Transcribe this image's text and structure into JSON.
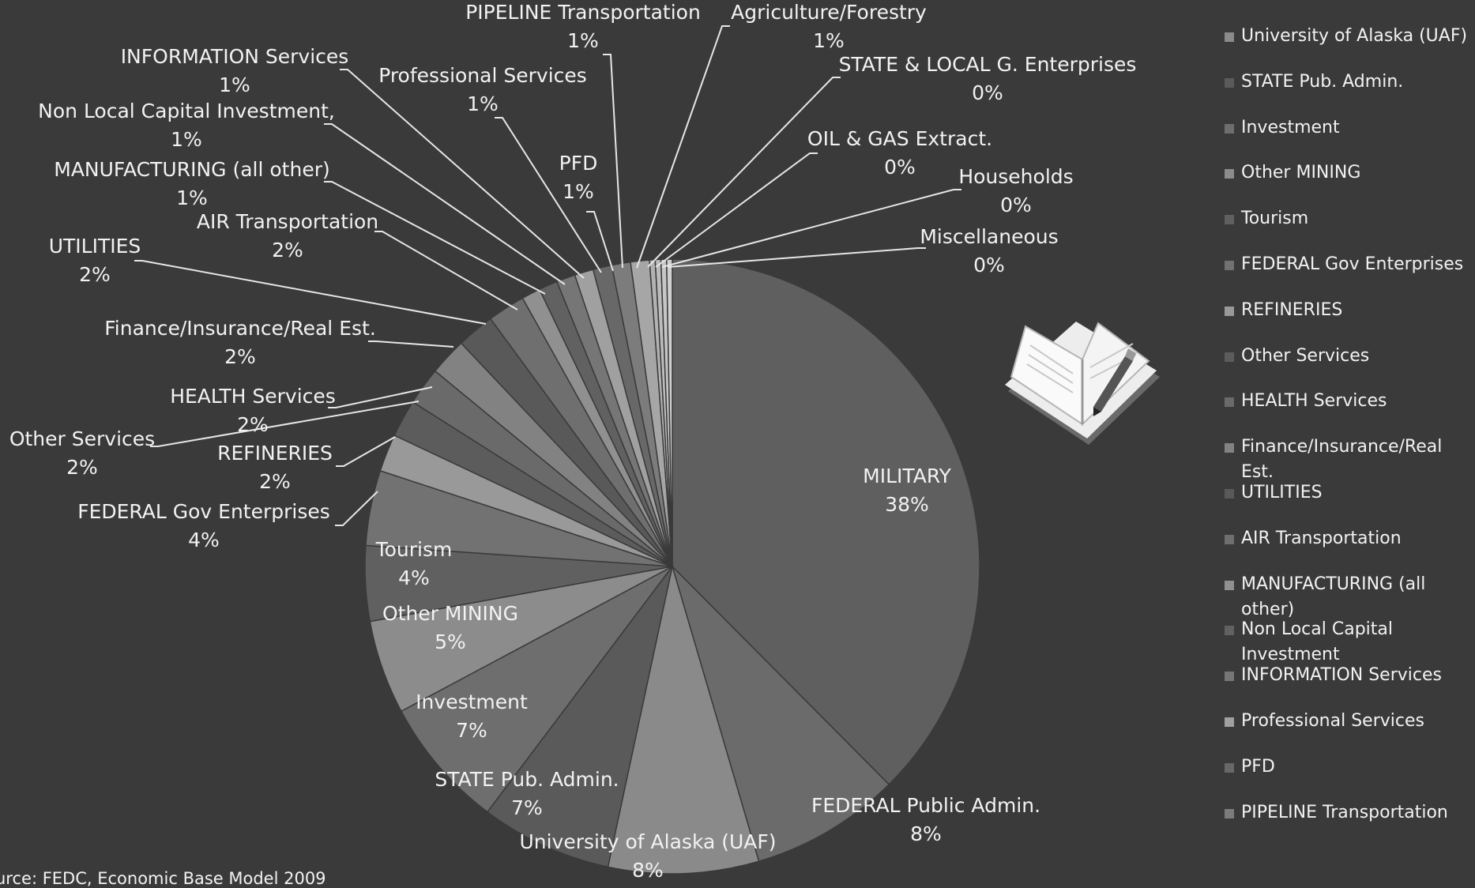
{
  "source_note": "urce:  FEDC, Economic Base Model 2009",
  "chart_data": {
    "type": "pie",
    "title": "",
    "slices": [
      {
        "name": "MILITARY",
        "label": "MILITARY",
        "value_label": "38%",
        "value": 38,
        "color": "#5f5f5f"
      },
      {
        "name": "FEDERAL Public Admin.",
        "label": "FEDERAL Public Admin.",
        "value_label": "8%",
        "value": 8,
        "color": "#6b6b6b"
      },
      {
        "name": "University of Alaska (UAF)",
        "label": "University of Alaska (UAF)",
        "value_label": "8%",
        "value": 8,
        "color": "#8a8a8a"
      },
      {
        "name": "STATE Pub. Admin.",
        "label": "STATE Pub. Admin.",
        "value_label": "7%",
        "value": 7,
        "color": "#5a5a5a"
      },
      {
        "name": "Investment",
        "label": "Investment",
        "value_label": "7%",
        "value": 7,
        "color": "#6e6e6e"
      },
      {
        "name": "Other MINING",
        "label": "Other MINING",
        "value_label": "5%",
        "value": 5,
        "color": "#8c8c8c"
      },
      {
        "name": "Tourism",
        "label": "Tourism",
        "value_label": "4%",
        "value": 4,
        "color": "#606060"
      },
      {
        "name": "FEDERAL Gov Enterprises",
        "label": "FEDERAL Gov Enterprises",
        "value_label": "4%",
        "value": 4,
        "color": "#727272"
      },
      {
        "name": "REFINERIES",
        "label": "REFINERIES",
        "value_label": "2%",
        "value": 2,
        "color": "#999999"
      },
      {
        "name": "Other Services",
        "label": "Other Services",
        "value_label": "2%",
        "value": 2,
        "color": "#5c5c5c"
      },
      {
        "name": "HEALTH Services",
        "label": "HEALTH Services",
        "value_label": "2%",
        "value": 2,
        "color": "#6a6a6a"
      },
      {
        "name": "Finance/Insurance/Real Est.",
        "label": "Finance/Insurance/Real Est.",
        "value_label": "2%",
        "value": 2,
        "color": "#828282"
      },
      {
        "name": "UTILITIES",
        "label": "UTILITIES",
        "value_label": "2%",
        "value": 2,
        "color": "#595959"
      },
      {
        "name": "AIR Transportation",
        "label": "AIR Transportation",
        "value_label": "2%",
        "value": 2,
        "color": "#6f6f6f"
      },
      {
        "name": "MANUFACTURING (all other)",
        "label": "MANUFACTURING (all other)",
        "value_label": "1%",
        "value": 1,
        "color": "#909090"
      },
      {
        "name": "Non Local Capital Investment",
        "label": "Non Local Capital Investment,",
        "value_label": "1%",
        "value": 1,
        "color": "#616161"
      },
      {
        "name": "INFORMATION Services",
        "label": "INFORMATION Services",
        "value_label": "1%",
        "value": 1,
        "color": "#767676"
      },
      {
        "name": "Professional Services",
        "label": "Professional Services",
        "value_label": "1%",
        "value": 1,
        "color": "#a0a0a0"
      },
      {
        "name": "PFD",
        "label": "PFD",
        "value_label": "1%",
        "value": 1,
        "color": "#686868"
      },
      {
        "name": "PIPELINE Transportation",
        "label": "PIPELINE Transportation",
        "value_label": "1%",
        "value": 1,
        "color": "#7c7c7c"
      },
      {
        "name": "Agriculture/Forestry",
        "label": "Agriculture/Forestry",
        "value_label": "1%",
        "value": 1,
        "color": "#a6a6a6"
      },
      {
        "name": "STATE & LOCAL G. Enterprises",
        "label": "STATE & LOCAL G. Enterprises",
        "value_label": "0%",
        "value": 0.3,
        "color": "#b2b2b2"
      },
      {
        "name": "OIL & GAS Extract.",
        "label": "OIL & GAS Extract.",
        "value_label": "0%",
        "value": 0.3,
        "color": "#bcbcbc"
      },
      {
        "name": "Households",
        "label": "Households",
        "value_label": "0%",
        "value": 0.3,
        "color": "#c6c6c6"
      },
      {
        "name": "Miscellaneous",
        "label": "Miscellaneous",
        "value_label": "0%",
        "value": 0.3,
        "color": "#d0d0d0"
      }
    ],
    "legend": {
      "placement": "right",
      "items": [
        {
          "label": "University of Alaska (UAF)",
          "color": "#8a8a8a"
        },
        {
          "label": "STATE Pub. Admin.",
          "color": "#5a5a5a"
        },
        {
          "label": "Investment",
          "color": "#6e6e6e"
        },
        {
          "label": "Other MINING",
          "color": "#8c8c8c"
        },
        {
          "label": "Tourism",
          "color": "#606060"
        },
        {
          "label": "FEDERAL Gov Enterprises",
          "color": "#727272"
        },
        {
          "label": "REFINERIES",
          "color": "#999999"
        },
        {
          "label": "Other Services",
          "color": "#5c5c5c"
        },
        {
          "label": "HEALTH Services",
          "color": "#6a6a6a"
        },
        {
          "label": "Finance/Insurance/Real Est.",
          "color": "#828282"
        },
        {
          "label": "UTILITIES",
          "color": "#595959"
        },
        {
          "label": "AIR Transportation",
          "color": "#6f6f6f"
        },
        {
          "label": "MANUFACTURING (all other)",
          "color": "#909090"
        },
        {
          "label": "Non Local Capital Investment",
          "color": "#616161"
        },
        {
          "label": "INFORMATION Services",
          "color": "#767676"
        },
        {
          "label": "Professional Services",
          "color": "#a0a0a0"
        },
        {
          "label": "PFD",
          "color": "#686868"
        },
        {
          "label": "PIPELINE Transportation",
          "color": "#7c7c7c"
        }
      ]
    }
  }
}
